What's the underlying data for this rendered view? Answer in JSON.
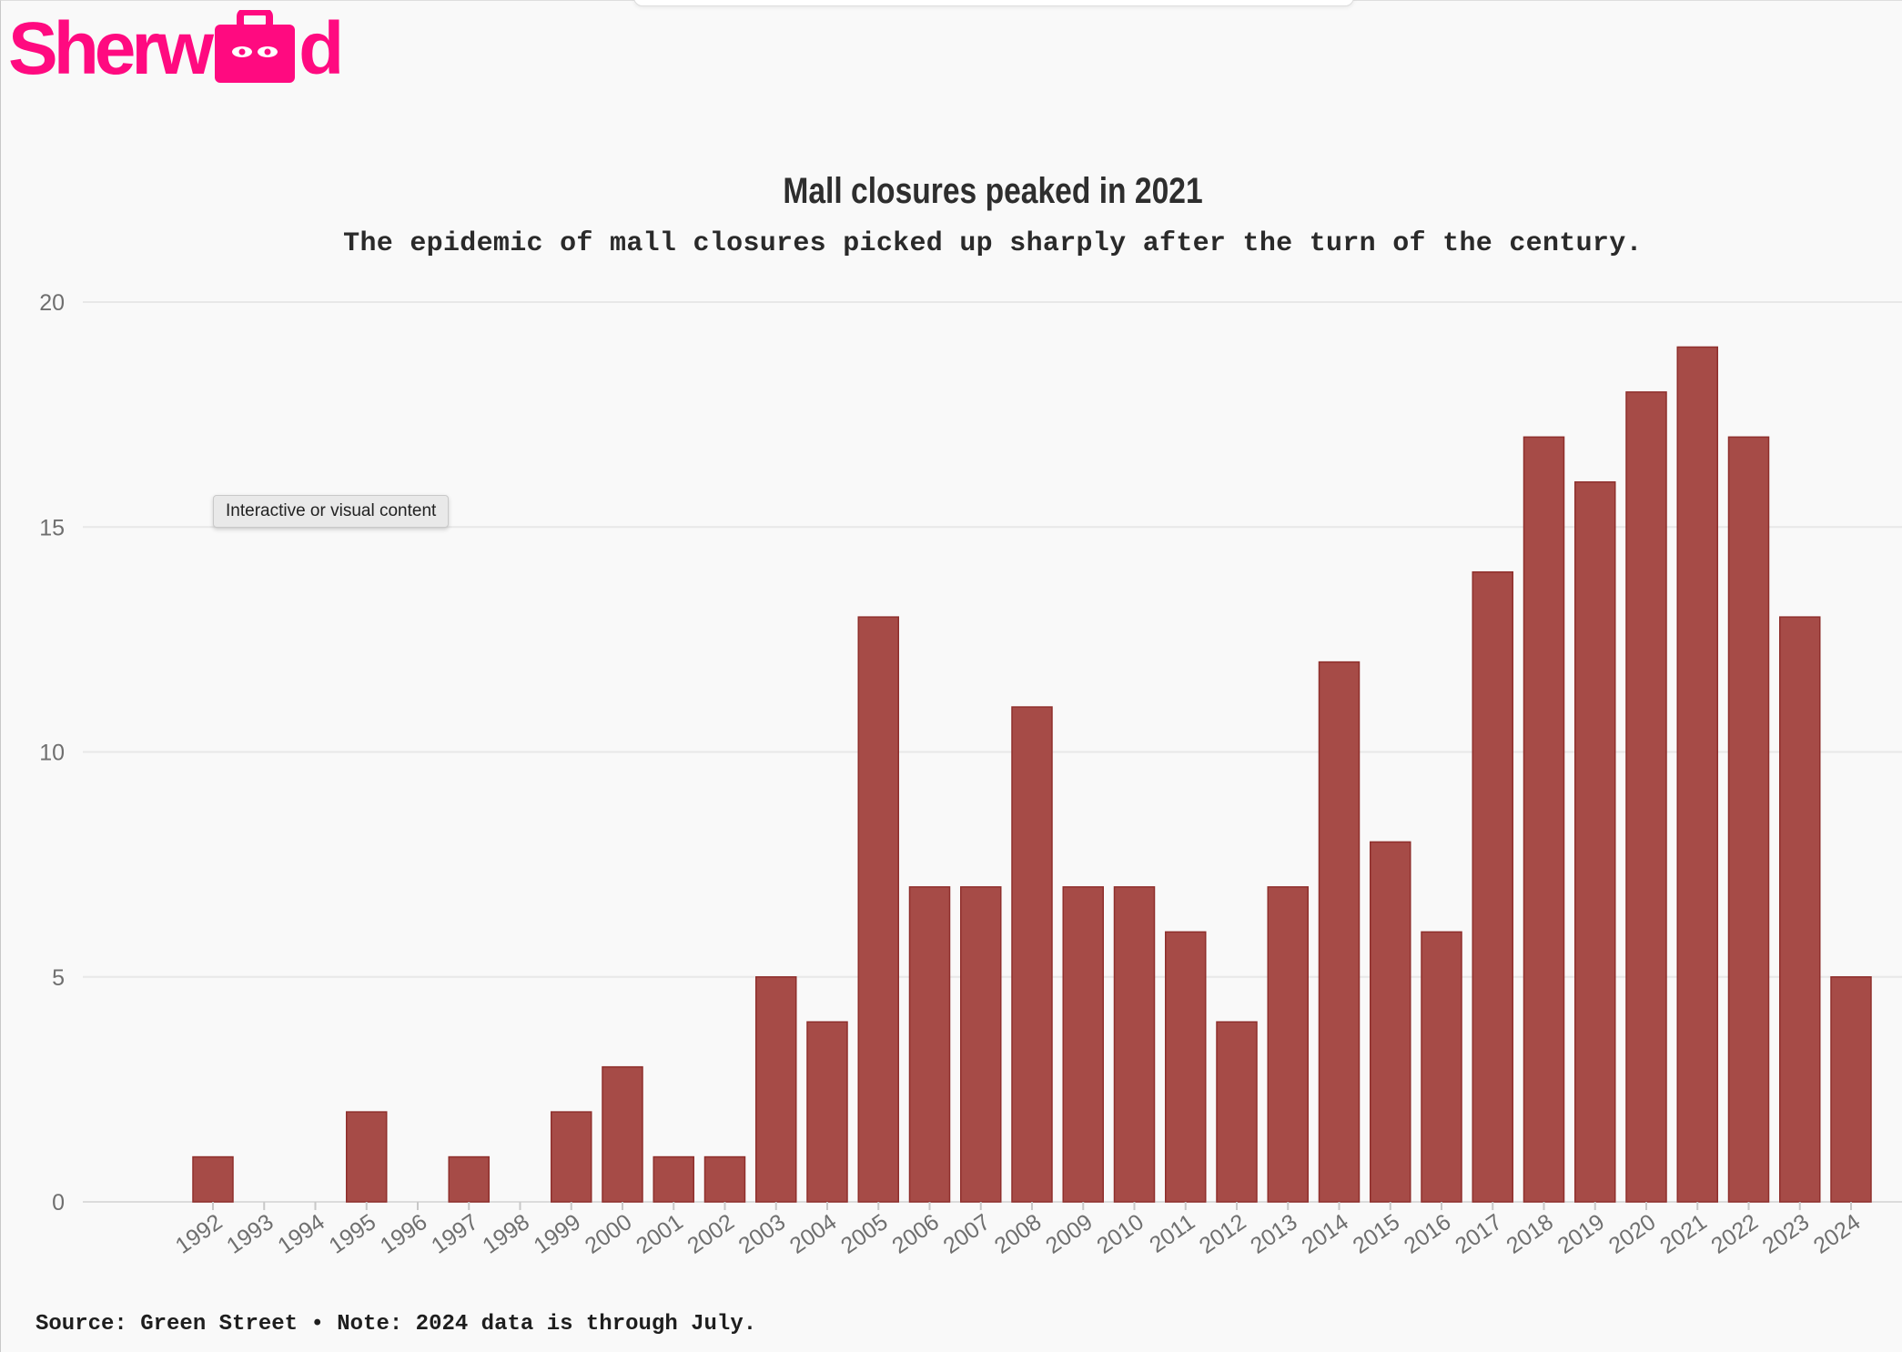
{
  "brand": {
    "logo_left": "Sherw",
    "logo_right": "d",
    "color": "#ff0a80"
  },
  "tooltip": "Interactive or visual content",
  "footer": {
    "text": "Source: Green Street • Note: 2024 data is through July."
  },
  "chart_data": {
    "type": "bar",
    "title": "Mall closures peaked in 2021",
    "subtitle": "The epidemic of mall closures picked up sharply after the turn of the century.",
    "xlabel": "",
    "ylabel": "",
    "ylim": [
      0,
      20
    ],
    "yticks": [
      0,
      5,
      10,
      15,
      20
    ],
    "grid": true,
    "bar_color": "#a64b47",
    "categories": [
      "1992",
      "1993",
      "1994",
      "1995",
      "1996",
      "1997",
      "1998",
      "1999",
      "2000",
      "2001",
      "2002",
      "2003",
      "2004",
      "2005",
      "2006",
      "2007",
      "2008",
      "2009",
      "2010",
      "2011",
      "2012",
      "2013",
      "2014",
      "2015",
      "2016",
      "2017",
      "2018",
      "2019",
      "2020",
      "2021",
      "2022",
      "2023",
      "2024"
    ],
    "values": [
      1,
      0,
      0,
      2,
      0,
      1,
      0,
      2,
      3,
      1,
      1,
      5,
      4,
      13,
      7,
      7,
      11,
      7,
      7,
      6,
      4,
      7,
      12,
      8,
      6,
      14,
      17,
      16,
      18,
      19,
      17,
      13,
      5
    ]
  }
}
